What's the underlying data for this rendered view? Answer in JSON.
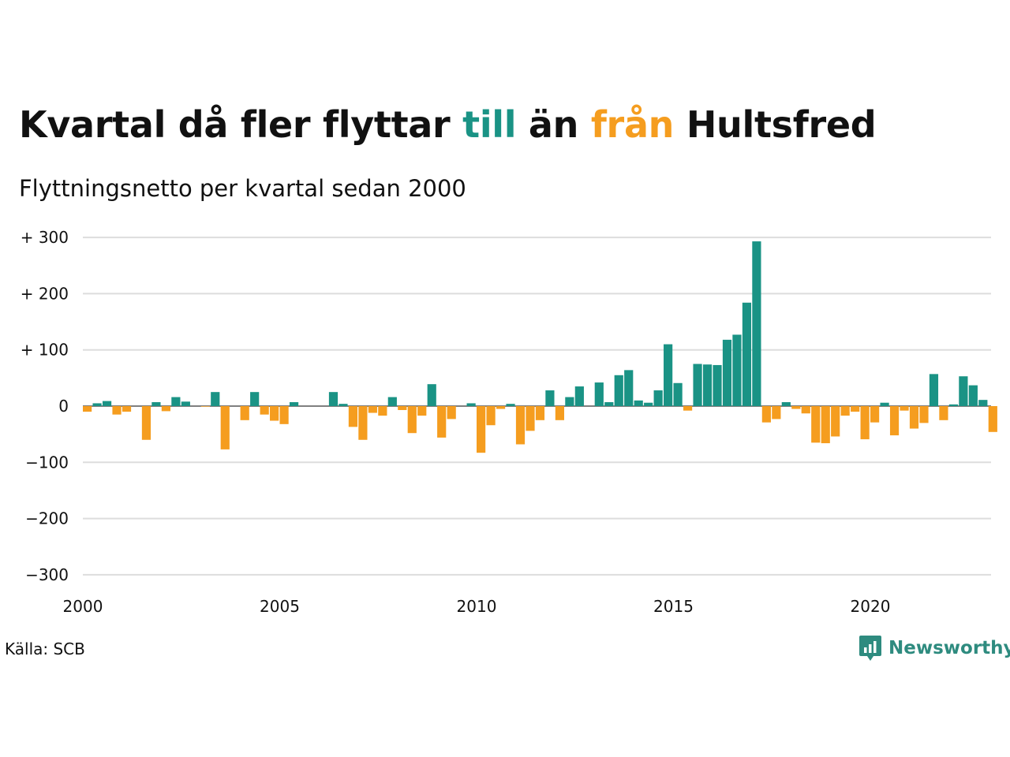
{
  "title": {
    "part1": "Kvartal då fler flyttar ",
    "till": "till",
    "part2": " än ",
    "fran": "från",
    "part3": " Hultsfred"
  },
  "subtitle": "Flyttningsnetto per kvartal sedan 2000",
  "source": "Källa: SCB",
  "logo_text": "Newsworthy",
  "colors": {
    "positive": "#1a9385",
    "negative": "#f59d1f",
    "grid": "#dddddd",
    "logo": "#2e8b7f"
  },
  "chart_data": {
    "type": "bar",
    "x_start_year": 2000,
    "periods_per_year": 4,
    "x_ticks": [
      2000,
      2005,
      2010,
      2015,
      2020
    ],
    "x_tick_labels": [
      "2000",
      "2005",
      "2010",
      "2015",
      "2020"
    ],
    "y_ticks": [
      300,
      200,
      100,
      0,
      -100,
      -200,
      -300
    ],
    "y_tick_labels": [
      "+ 300",
      "+ 200",
      "+ 100",
      "0",
      "−100",
      "−200",
      "−300"
    ],
    "ylim": [
      -300,
      300
    ],
    "grid": true,
    "values": [
      -10,
      5,
      9,
      -15,
      -10,
      0,
      -60,
      7,
      -9,
      16,
      8,
      0,
      -1,
      25,
      -77,
      0,
      -25,
      25,
      -15,
      -26,
      -32,
      7,
      0,
      0,
      0,
      25,
      4,
      -37,
      -60,
      -12,
      -17,
      16,
      -7,
      -48,
      -17,
      39,
      -56,
      -23,
      0,
      5,
      -83,
      -34,
      -5,
      4,
      -68,
      -44,
      -25,
      28,
      -25,
      16,
      35,
      0,
      42,
      7,
      55,
      64,
      10,
      6,
      28,
      110,
      41,
      -8,
      75,
      74,
      73,
      118,
      127,
      184,
      293,
      -29,
      -23,
      7,
      -5,
      -13,
      -65,
      -66,
      -54,
      -17,
      -10,
      -59,
      -29,
      6,
      -52,
      -8,
      -40,
      -30,
      57,
      -25,
      3,
      53,
      37,
      11,
      -46
    ]
  }
}
